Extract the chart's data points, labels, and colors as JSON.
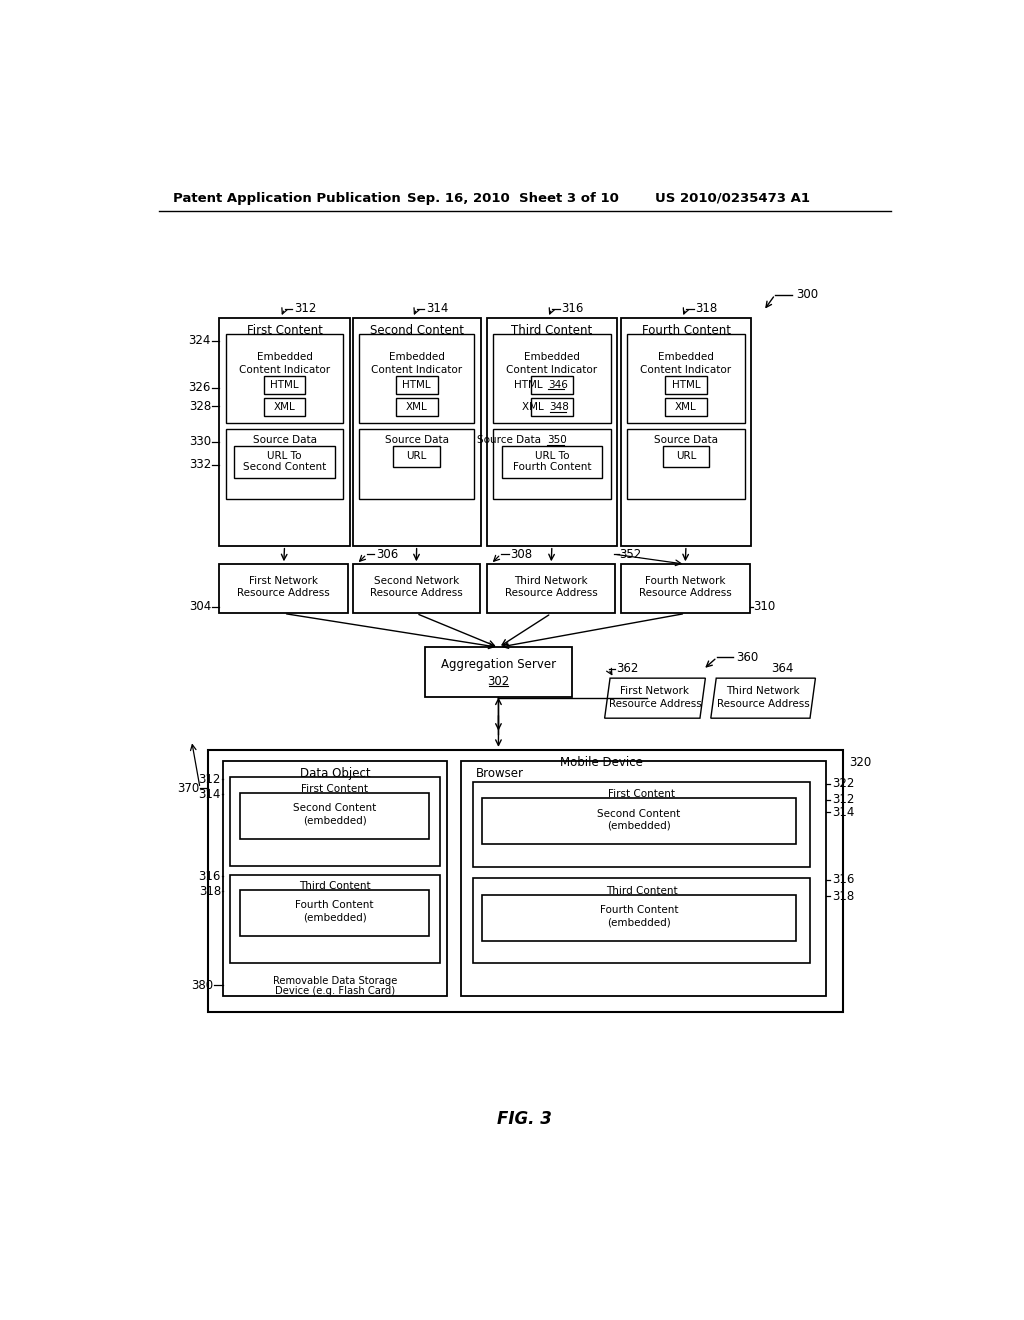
{
  "bg_color": "#ffffff",
  "header_left": "Patent Application Publication",
  "header_mid": "Sep. 16, 2010  Sheet 3 of 10",
  "header_right": "US 2010/0235473 A1",
  "fig_label": "FIG. 3"
}
